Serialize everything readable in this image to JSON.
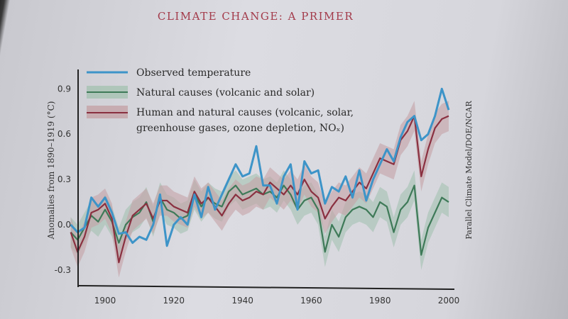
{
  "header": {
    "title": "CLIMATE CHANGE: A PRIMER"
  },
  "chart_data": {
    "type": "line",
    "title": "",
    "xlabel": "",
    "ylabel": "Anomalies from 1890–1919 (°C)",
    "credit": "Parallel Climate Model/DOE/NCAR",
    "xlim": [
      1890,
      2000
    ],
    "ylim": [
      -0.35,
      0.95
    ],
    "x_ticks": [
      "1900",
      "1920",
      "1940",
      "1960",
      "1980",
      "2000"
    ],
    "y_ticks": [
      "0.9",
      "0.6",
      "0.3",
      "0.0",
      "-0.3"
    ],
    "legend_placement": "top-left",
    "x": [
      1890,
      1892,
      1894,
      1896,
      1898,
      1900,
      1902,
      1904,
      1906,
      1908,
      1910,
      1912,
      1914,
      1916,
      1918,
      1920,
      1922,
      1924,
      1926,
      1928,
      1930,
      1932,
      1934,
      1936,
      1938,
      1940,
      1942,
      1944,
      1946,
      1948,
      1950,
      1952,
      1954,
      1956,
      1958,
      1960,
      1962,
      1964,
      1966,
      1968,
      1970,
      1972,
      1974,
      1976,
      1978,
      1980,
      1982,
      1984,
      1986,
      1988,
      1990,
      1992,
      1994,
      1996,
      1998,
      2000
    ],
    "series": [
      {
        "name": "Observed temperature",
        "color": "#3d94c8",
        "values": [
          0.0,
          -0.05,
          -0.02,
          0.18,
          0.12,
          0.18,
          0.08,
          -0.06,
          -0.05,
          -0.12,
          -0.08,
          -0.1,
          0.0,
          0.2,
          -0.14,
          0.0,
          0.05,
          0.0,
          0.2,
          0.05,
          0.25,
          0.1,
          0.2,
          0.3,
          0.4,
          0.32,
          0.34,
          0.52,
          0.26,
          0.26,
          0.14,
          0.32,
          0.4,
          0.1,
          0.42,
          0.34,
          0.36,
          0.14,
          0.25,
          0.22,
          0.32,
          0.18,
          0.36,
          0.16,
          0.3,
          0.4,
          0.5,
          0.42,
          0.58,
          0.68,
          0.72,
          0.56,
          0.6,
          0.72,
          0.9,
          0.76
        ]
      },
      {
        "name": "Natural causes (volcanic and solar)",
        "color": "#3e7a58",
        "band_color": "#9fc0ad",
        "values": [
          -0.05,
          -0.1,
          -0.02,
          0.06,
          0.02,
          0.1,
          0.02,
          -0.12,
          0.0,
          0.05,
          0.08,
          0.15,
          0.02,
          0.18,
          0.1,
          0.08,
          0.04,
          0.06,
          0.2,
          0.12,
          0.18,
          0.14,
          0.12,
          0.22,
          0.26,
          0.2,
          0.22,
          0.24,
          0.2,
          0.22,
          0.18,
          0.26,
          0.2,
          0.1,
          0.16,
          0.18,
          0.1,
          -0.18,
          0.0,
          -0.08,
          0.05,
          0.1,
          0.12,
          0.1,
          0.05,
          0.15,
          0.12,
          -0.05,
          0.1,
          0.15,
          0.26,
          -0.2,
          -0.02,
          0.08,
          0.18,
          0.15
        ]
      },
      {
        "name": "Human and natural causes (volcanic, solar, greenhouse gases, ozone depletion, NOₓ)",
        "color": "#8a3040",
        "band_color": "#c4a2a6",
        "values": [
          -0.05,
          -0.18,
          -0.08,
          0.08,
          0.1,
          0.14,
          0.04,
          -0.25,
          -0.08,
          0.06,
          0.1,
          0.14,
          0.04,
          0.16,
          0.16,
          0.12,
          0.1,
          0.08,
          0.22,
          0.14,
          0.18,
          0.12,
          0.06,
          0.14,
          0.2,
          0.16,
          0.18,
          0.22,
          0.2,
          0.28,
          0.24,
          0.2,
          0.26,
          0.2,
          0.3,
          0.22,
          0.18,
          0.04,
          0.12,
          0.18,
          0.16,
          0.22,
          0.28,
          0.24,
          0.34,
          0.44,
          0.42,
          0.4,
          0.56,
          0.62,
          0.72,
          0.32,
          0.5,
          0.64,
          0.7,
          0.72
        ]
      }
    ]
  }
}
